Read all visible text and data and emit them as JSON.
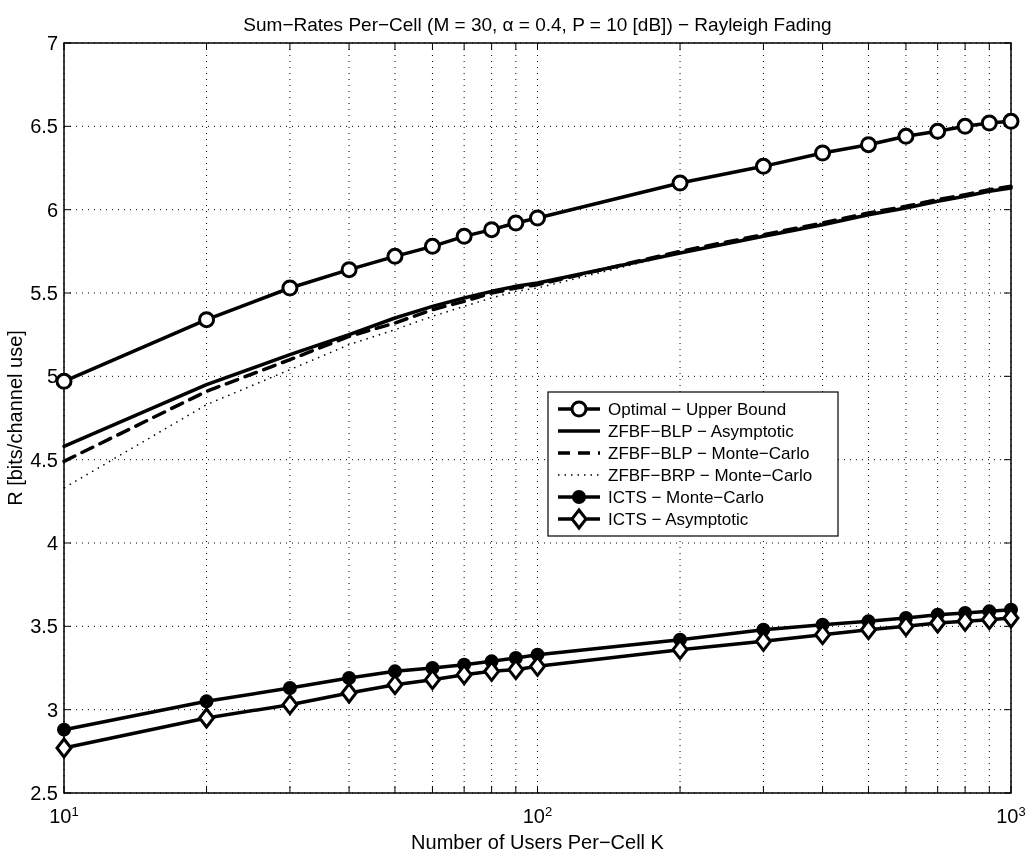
{
  "chart_data": {
    "type": "line",
    "title": "Sum−Rates Per−Cell (M = 30, α = 0.4, P = 10 [dB]) − Rayleigh Fading",
    "xlabel": "Number of Users Per−Cell K",
    "ylabel": "R [bits/channel use]",
    "x": [
      10,
      20,
      30,
      40,
      50,
      60,
      70,
      80,
      90,
      100,
      200,
      300,
      400,
      500,
      600,
      700,
      800,
      900,
      1000
    ],
    "log": "x",
    "grid": true,
    "legend": "right",
    "xlim": [
      10,
      1000
    ],
    "ylim": [
      2.5,
      7
    ],
    "xticks": [
      {
        "value": 10,
        "label": "10$^{1}$"
      },
      {
        "value": 20,
        "label": null
      },
      {
        "value": 30,
        "label": null
      },
      {
        "value": 40,
        "label": null
      },
      {
        "value": 50,
        "label": null
      },
      {
        "value": 60,
        "label": null
      },
      {
        "value": 70,
        "label": null
      },
      {
        "value": 80,
        "label": null
      },
      {
        "value": 90,
        "label": null
      },
      {
        "value": 100,
        "label": "10$^{2}$"
      },
      {
        "value": 200,
        "label": null
      },
      {
        "value": 300,
        "label": null
      },
      {
        "value": 400,
        "label": null
      },
      {
        "value": 500,
        "label": null
      },
      {
        "value": 600,
        "label": null
      },
      {
        "value": 700,
        "label": null
      },
      {
        "value": 800,
        "label": null
      },
      {
        "value": 900,
        "label": null
      },
      {
        "value": 1000,
        "label": "10$^{3}$"
      }
    ],
    "yticks": [
      2.5,
      3,
      3.5,
      4,
      4.5,
      5,
      5.5,
      6,
      6.5,
      7
    ],
    "series": [
      {
        "name": "Optimal − Upper Bound",
        "color": "#000000",
        "marker": "circle",
        "line_style": "solid",
        "values": [
          4.97,
          5.34,
          5.53,
          5.64,
          5.72,
          5.78,
          5.84,
          5.88,
          5.92,
          5.95,
          6.16,
          6.26,
          6.34,
          6.39,
          6.44,
          6.47,
          6.5,
          6.52,
          6.53
        ]
      },
      {
        "name": "ZFBF−BLP − Asymptotic",
        "color": "#000000",
        "marker": "none",
        "line_style": "solid",
        "values": [
          4.58,
          4.95,
          5.13,
          5.25,
          5.35,
          5.42,
          5.47,
          5.51,
          5.54,
          5.56,
          5.74,
          5.84,
          5.91,
          5.97,
          6.01,
          6.05,
          6.08,
          6.11,
          6.13
        ]
      },
      {
        "name": "ZFBF−BLP − Monte−Carlo",
        "color": "#000000",
        "marker": "none",
        "line_style": "dashed",
        "values": [
          4.49,
          4.91,
          5.1,
          5.24,
          5.32,
          5.4,
          5.45,
          5.5,
          5.53,
          5.55,
          5.75,
          5.85,
          5.92,
          5.98,
          6.02,
          6.06,
          6.09,
          6.12,
          6.14
        ]
      },
      {
        "name": "ZFBF−BRP − Monte−Carlo",
        "color": "#000000",
        "marker": "none",
        "line_style": "dotted",
        "values": [
          4.33,
          4.83,
          5.04,
          5.19,
          5.28,
          5.36,
          5.42,
          5.47,
          5.51,
          5.53,
          5.74,
          5.85,
          5.92,
          5.97,
          6.01,
          6.05,
          6.08,
          6.11,
          6.13
        ]
      },
      {
        "name": "ICTS − Monte−Carlo",
        "color": "#000000",
        "marker": "filled-circle",
        "line_style": "solid",
        "values": [
          2.88,
          3.05,
          3.13,
          3.19,
          3.23,
          3.25,
          3.27,
          3.29,
          3.31,
          3.33,
          3.42,
          3.48,
          3.51,
          3.53,
          3.55,
          3.57,
          3.58,
          3.59,
          3.6
        ]
      },
      {
        "name": "ICTS − Asymptotic",
        "color": "#000000",
        "marker": "diamond",
        "line_style": "solid",
        "values": [
          2.77,
          2.95,
          3.03,
          3.1,
          3.15,
          3.18,
          3.21,
          3.23,
          3.24,
          3.26,
          3.36,
          3.41,
          3.45,
          3.48,
          3.5,
          3.52,
          3.53,
          3.54,
          3.55
        ]
      }
    ]
  }
}
